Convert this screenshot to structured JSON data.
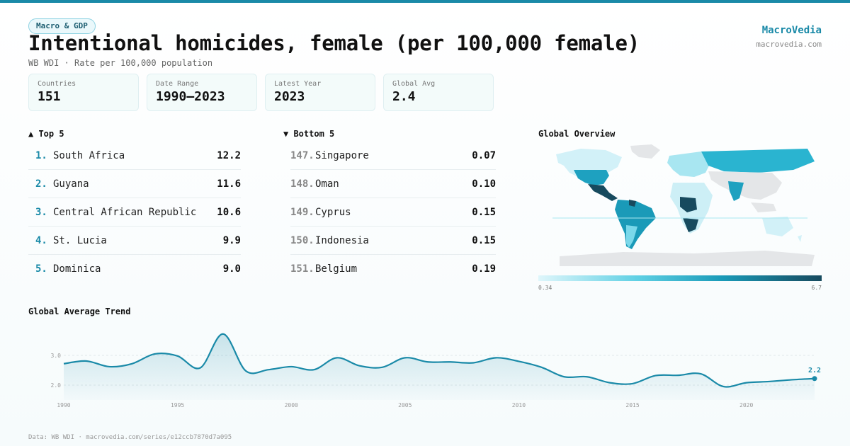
{
  "header": {
    "tag": "Macro & GDP",
    "title": "Intentional homicides, female (per 100,000 female)",
    "subtitle": "WB WDI · Rate per 100,000 population",
    "brand": "MacroVedia",
    "brand_url": "macrovedia.com"
  },
  "stats": [
    {
      "label": "Countries",
      "value": "151"
    },
    {
      "label": "Date Range",
      "value": "1990–2023"
    },
    {
      "label": "Latest Year",
      "value": "2023"
    },
    {
      "label": "Global Avg",
      "value": "2.4"
    }
  ],
  "top5": {
    "heading": "▲ Top 5",
    "items": [
      {
        "rank": "1.",
        "name": "South Africa",
        "value": "12.2"
      },
      {
        "rank": "2.",
        "name": "Guyana",
        "value": "11.6"
      },
      {
        "rank": "3.",
        "name": "Central African Republic",
        "value": "10.6"
      },
      {
        "rank": "4.",
        "name": "St. Lucia",
        "value": "9.9"
      },
      {
        "rank": "5.",
        "name": "Dominica",
        "value": "9.0"
      }
    ]
  },
  "bottom5": {
    "heading": "▼ Bottom 5",
    "items": [
      {
        "rank": "147.",
        "name": "Singapore",
        "value": "0.07"
      },
      {
        "rank": "148.",
        "name": "Oman",
        "value": "0.10"
      },
      {
        "rank": "149.",
        "name": "Cyprus",
        "value": "0.15"
      },
      {
        "rank": "150.",
        "name": "Indonesia",
        "value": "0.15"
      },
      {
        "rank": "151.",
        "name": "Belgium",
        "value": "0.19"
      }
    ]
  },
  "map": {
    "heading": "Global Overview",
    "legend_min": "0.34",
    "legend_max": "6.7",
    "colors": {
      "low": "#dff6fb",
      "mid": "#1a9ab8",
      "high": "#174a5e",
      "nodata": "#e4e6e8"
    }
  },
  "chart_data": {
    "type": "area",
    "title": "Global Average Trend",
    "x": [
      1990,
      1991,
      1992,
      1993,
      1994,
      1995,
      1996,
      1997,
      1998,
      1999,
      2000,
      2001,
      2002,
      2003,
      2004,
      2005,
      2006,
      2007,
      2008,
      2009,
      2010,
      2011,
      2012,
      2013,
      2014,
      2015,
      2016,
      2017,
      2018,
      2019,
      2020,
      2021,
      2022,
      2023
    ],
    "y": [
      2.72,
      2.81,
      2.62,
      2.72,
      3.05,
      2.98,
      2.58,
      3.72,
      2.48,
      2.52,
      2.62,
      2.52,
      2.92,
      2.65,
      2.6,
      2.92,
      2.78,
      2.78,
      2.75,
      2.92,
      2.8,
      2.6,
      2.28,
      2.28,
      2.08,
      2.05,
      2.32,
      2.33,
      2.38,
      1.95,
      2.08,
      2.12,
      2.18,
      2.22
    ],
    "x_ticks": [
      "1990",
      "1995",
      "2000",
      "2005",
      "2010",
      "2015",
      "2020"
    ],
    "y_ticks": [
      "2.0",
      "3.0"
    ],
    "ylim": [
      1.5,
      4.0
    ],
    "last_label": "2.2",
    "color": "#1a8aa8"
  },
  "footer": "Data: WB WDI · macrovedia.com/series/e12ccb7870d7a095"
}
